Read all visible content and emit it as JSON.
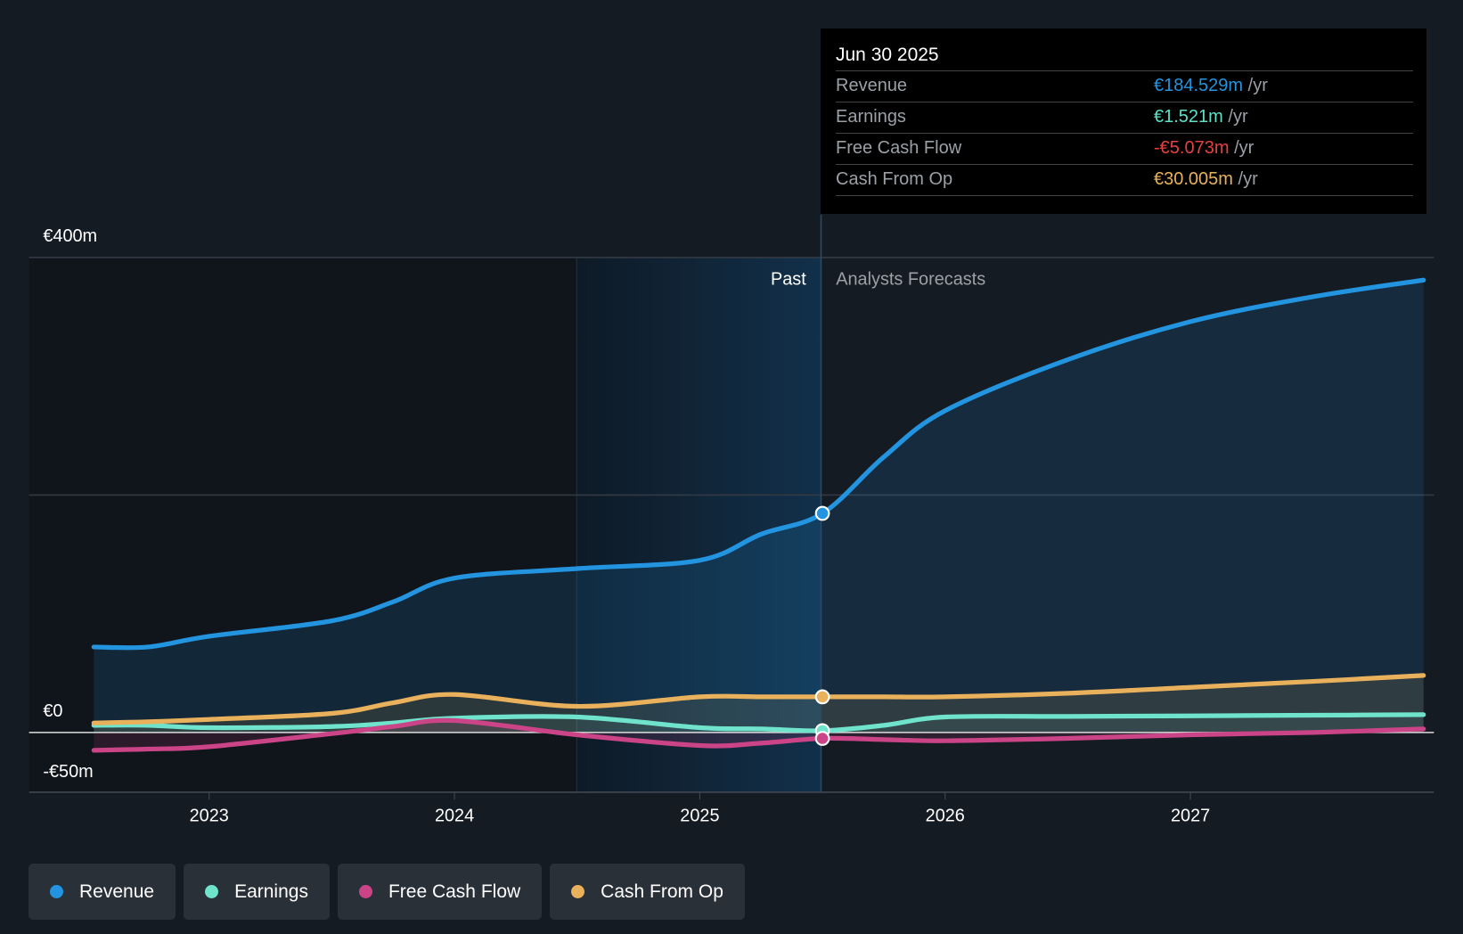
{
  "tooltip": {
    "date": "Jun 30 2025",
    "rows": [
      {
        "label": "Revenue",
        "value": "€184.529m",
        "unit": "/yr",
        "color": "#2394df"
      },
      {
        "label": "Earnings",
        "value": "€1.521m",
        "unit": "/yr",
        "color": "#5fe0c8"
      },
      {
        "label": "Free Cash Flow",
        "value": "-€5.073m",
        "unit": "/yr",
        "color": "#e64141"
      },
      {
        "label": "Cash From Op",
        "value": "€30.005m",
        "unit": "/yr",
        "color": "#e9b15b"
      }
    ]
  },
  "labels": {
    "past": "Past",
    "forecast": "Analysts Forecasts"
  },
  "legend": [
    {
      "label": "Revenue",
      "color": "#2394df"
    },
    {
      "label": "Earnings",
      "color": "#6fe3cc"
    },
    {
      "label": "Free Cash Flow",
      "color": "#cc4488"
    },
    {
      "label": "Cash From Op",
      "color": "#e9b15b"
    }
  ],
  "chart_data": {
    "type": "line",
    "ylim": [
      -50,
      400
    ],
    "yticks": [
      {
        "v": 400,
        "label": "€400m"
      },
      {
        "v": 0,
        "label": "€0"
      },
      {
        "v": -50,
        "label": "-€50m"
      }
    ],
    "xticks": [
      {
        "v": 2023,
        "label": "2023"
      },
      {
        "v": 2024,
        "label": "2024"
      },
      {
        "v": 2025,
        "label": "2025"
      },
      {
        "v": 2026,
        "label": "2026"
      },
      {
        "v": 2027,
        "label": "2027"
      }
    ],
    "past_start": 2024.5,
    "now": 2025.5,
    "x": [
      2022.53,
      2022.75,
      2023,
      2023.5,
      2023.75,
      2024,
      2024.5,
      2025,
      2025.25,
      2025.5,
      2025.75,
      2026,
      2026.5,
      2027,
      2027.5,
      2027.95
    ],
    "series": [
      {
        "name": "Revenue",
        "color": "#2394df",
        "values": [
          72,
          72,
          81,
          94,
          110,
          130,
          138,
          145,
          167,
          184.5,
          232,
          271,
          314,
          346,
          367,
          381
        ]
      },
      {
        "name": "Earnings",
        "color": "#6fe3cc",
        "values": [
          6,
          6,
          4,
          5,
          8,
          12,
          13,
          4,
          3,
          1.5,
          6,
          13,
          13.5,
          14,
          14.5,
          15
        ]
      },
      {
        "name": "Free Cash Flow",
        "color": "#cc4488",
        "values": [
          -15,
          -14,
          -12,
          -1,
          5,
          10,
          -2,
          -11,
          -9,
          -5,
          -6,
          -7,
          -5,
          -2,
          0,
          3
        ]
      },
      {
        "name": "Cash From Op",
        "color": "#e9b15b",
        "values": [
          8,
          9,
          11,
          16,
          25,
          32,
          22,
          30,
          30,
          30,
          30,
          30,
          33,
          38,
          43,
          48
        ]
      }
    ]
  }
}
